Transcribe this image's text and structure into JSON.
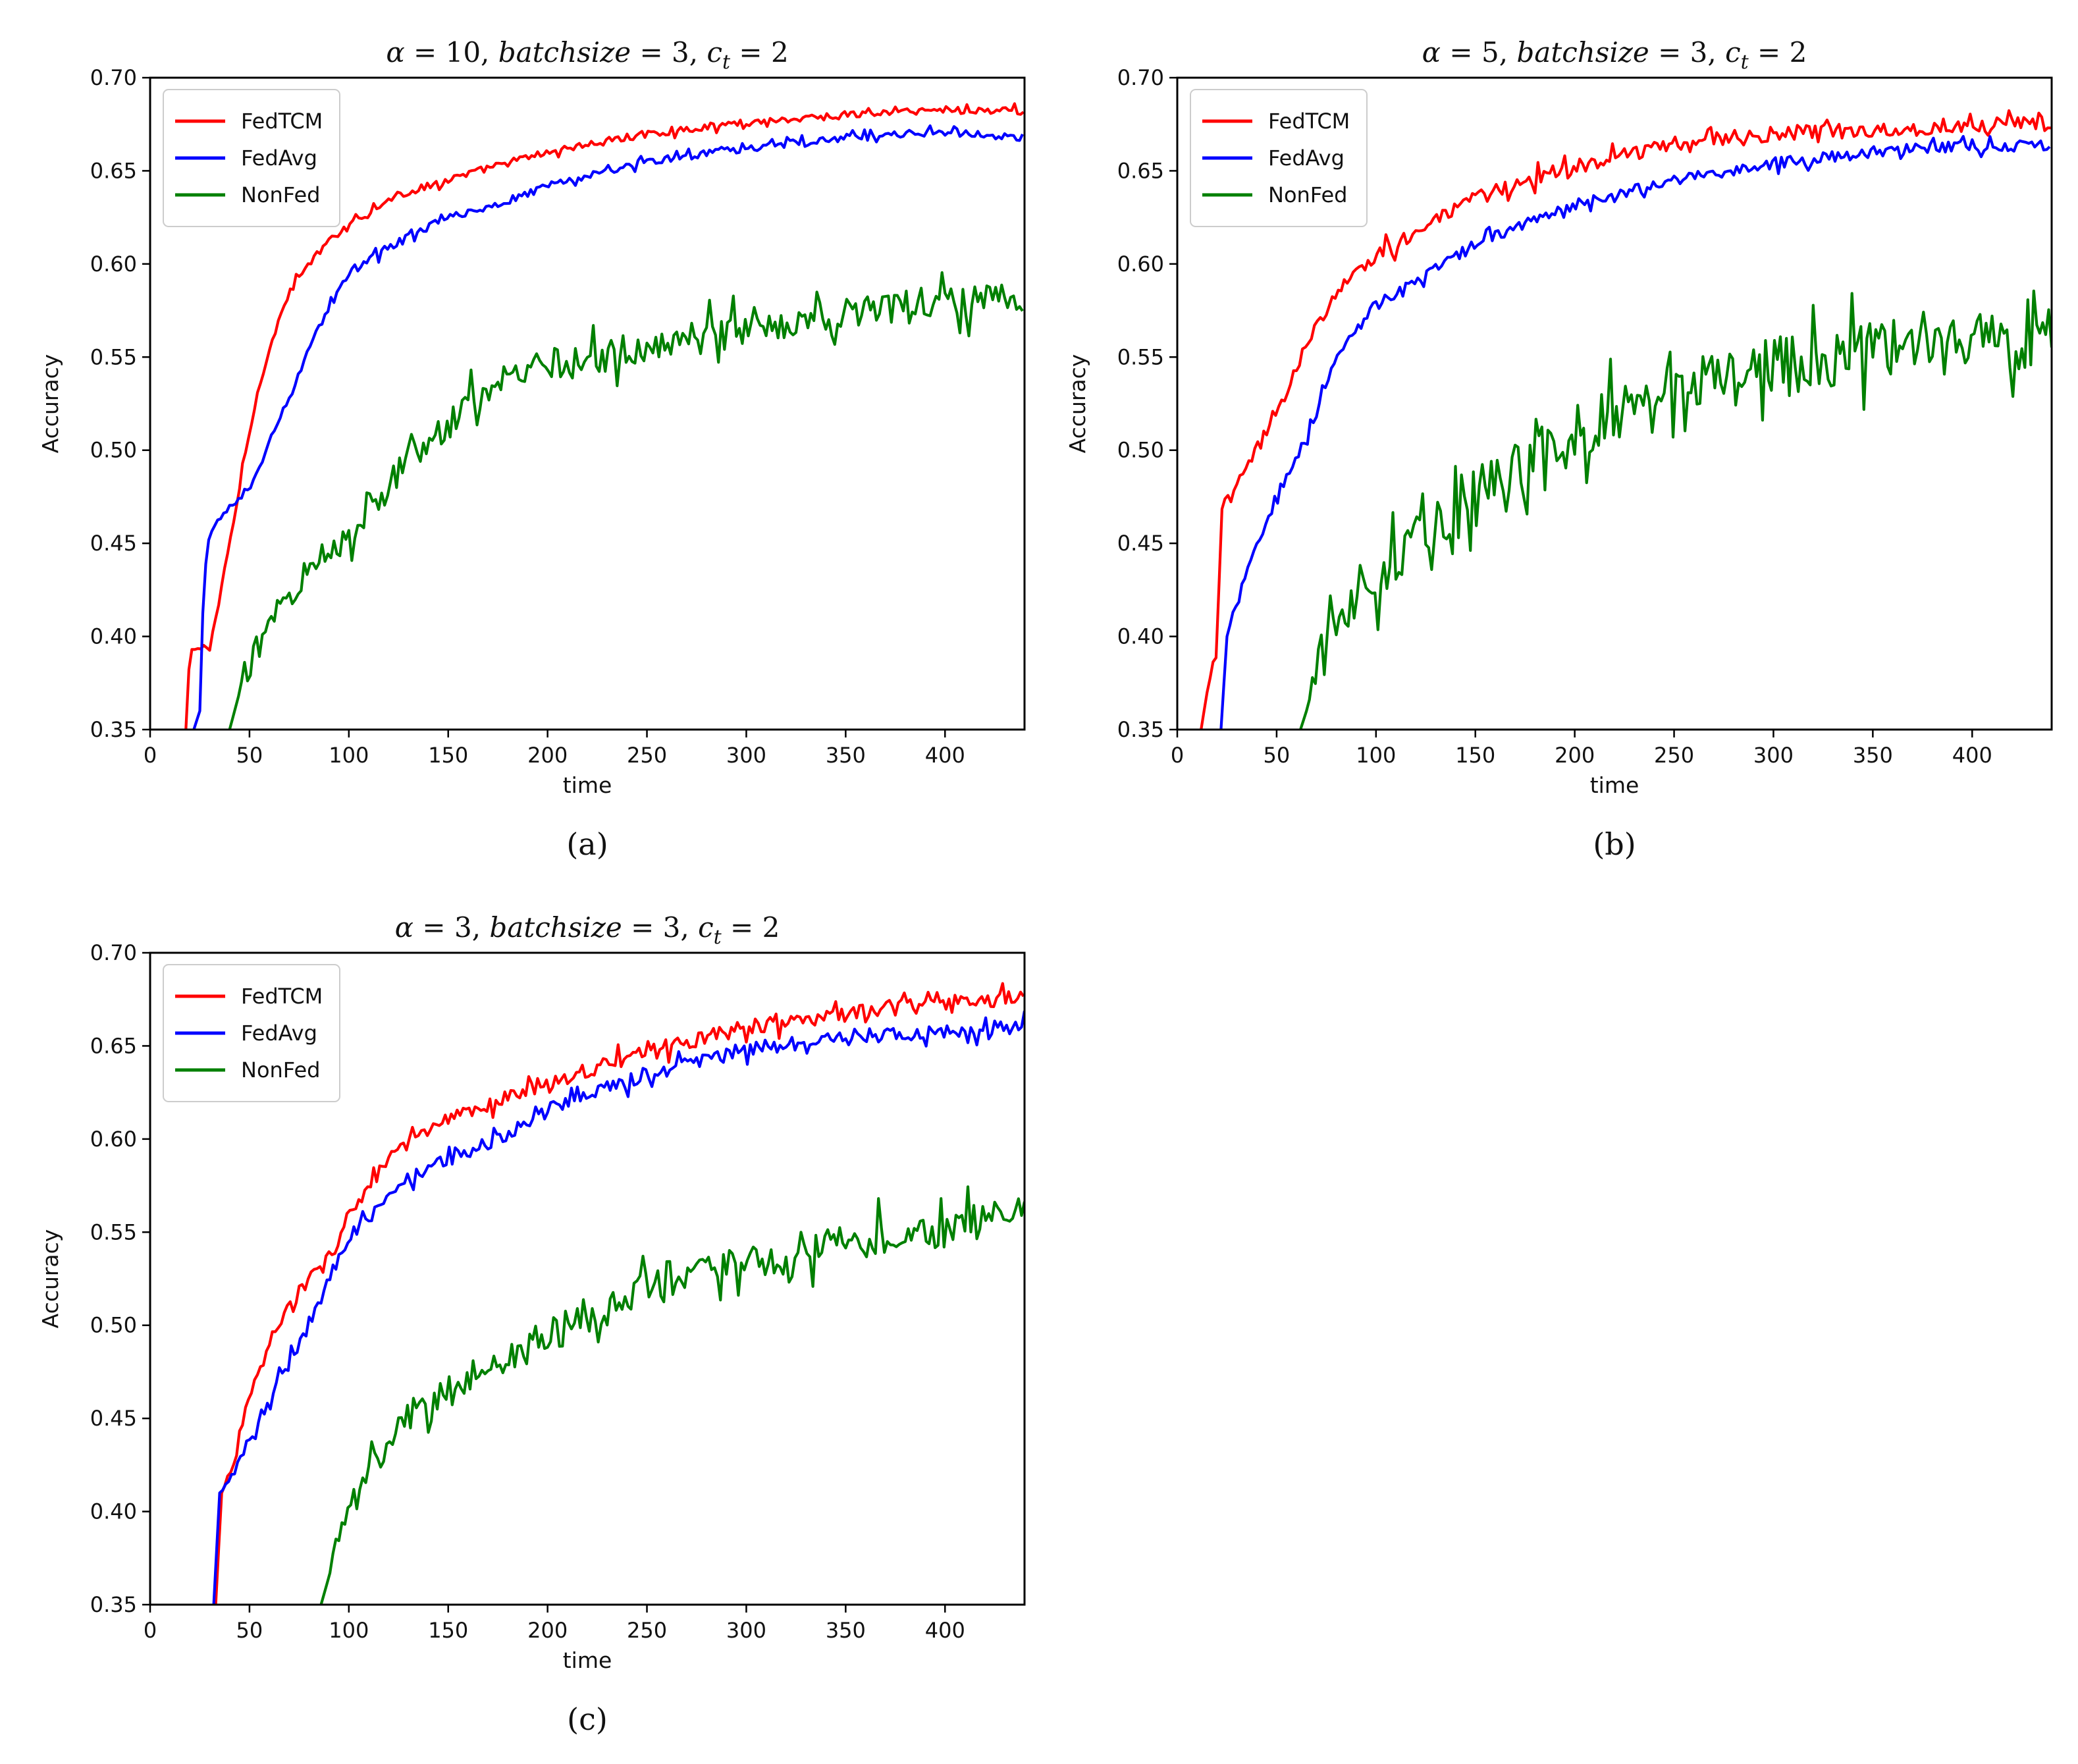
{
  "chart_data": [
    {
      "type": "line",
      "title": "α = 10, batchsize = 3, c_t = 2",
      "title_parts": {
        "alpha_value": "10",
        "batch_value": "3",
        "ct_value": "2"
      },
      "caption": "(a)",
      "xlabel": "time",
      "ylabel": "Accuracy",
      "xlim": [
        0,
        440
      ],
      "ylim": [
        0.35,
        0.7
      ],
      "xticks": [
        0,
        50,
        100,
        150,
        200,
        250,
        300,
        350,
        400
      ],
      "yticks": [
        "0.35",
        "0.40",
        "0.45",
        "0.50",
        "0.55",
        "0.60",
        "0.65",
        "0.70"
      ],
      "grid": false,
      "legend_position": "top-left",
      "series": [
        {
          "name": "FedTCM",
          "color": "#ff0000",
          "noise": 0.002,
          "x": [
            18,
            20,
            25,
            30,
            35,
            40,
            45,
            50,
            55,
            60,
            70,
            80,
            90,
            100,
            125,
            150,
            175,
            200,
            250,
            300,
            350,
            400,
            440
          ],
          "y": [
            0.35,
            0.393,
            0.393,
            0.395,
            0.42,
            0.45,
            0.48,
            0.51,
            0.535,
            0.555,
            0.585,
            0.6,
            0.612,
            0.622,
            0.637,
            0.645,
            0.653,
            0.66,
            0.67,
            0.676,
            0.68,
            0.683,
            0.682
          ]
        },
        {
          "name": "FedAvg",
          "color": "#0000ff",
          "noise": 0.002,
          "x": [
            22,
            25,
            27,
            30,
            35,
            40,
            45,
            50,
            55,
            60,
            70,
            80,
            90,
            100,
            125,
            150,
            175,
            200,
            250,
            300,
            350,
            400,
            440
          ],
          "y": [
            0.35,
            0.36,
            0.43,
            0.455,
            0.462,
            0.47,
            0.475,
            0.48,
            0.49,
            0.505,
            0.528,
            0.555,
            0.577,
            0.595,
            0.612,
            0.625,
            0.632,
            0.642,
            0.655,
            0.662,
            0.668,
            0.671,
            0.668
          ]
        },
        {
          "name": "NonFed",
          "color": "#008000",
          "noise": 0.009,
          "x": [
            40,
            45,
            50,
            60,
            70,
            80,
            90,
            100,
            125,
            150,
            175,
            200,
            250,
            300,
            350,
            400,
            440
          ],
          "y": [
            0.35,
            0.37,
            0.385,
            0.41,
            0.425,
            0.435,
            0.445,
            0.457,
            0.49,
            0.515,
            0.535,
            0.545,
            0.555,
            0.565,
            0.575,
            0.58,
            0.583
          ]
        }
      ]
    },
    {
      "type": "line",
      "title": "α = 5, batchsize = 3, c_t = 2",
      "title_parts": {
        "alpha_value": "5",
        "batch_value": "3",
        "ct_value": "2"
      },
      "caption": "(b)",
      "xlabel": "time",
      "ylabel": "Accuracy",
      "xlim": [
        0,
        440
      ],
      "ylim": [
        0.35,
        0.7
      ],
      "xticks": [
        0,
        50,
        100,
        150,
        200,
        250,
        300,
        350,
        400
      ],
      "yticks": [
        "0.35",
        "0.40",
        "0.45",
        "0.50",
        "0.55",
        "0.60",
        "0.65",
        "0.70"
      ],
      "grid": false,
      "legend_position": "top-left",
      "series": [
        {
          "name": "FedTCM",
          "color": "#ff0000",
          "noise": 0.004,
          "x": [
            12,
            15,
            18,
            20,
            22,
            25,
            30,
            40,
            50,
            60,
            70,
            80,
            90,
            100,
            125,
            150,
            175,
            200,
            250,
            300,
            350,
            400,
            440
          ],
          "y": [
            0.35,
            0.37,
            0.385,
            0.385,
            0.47,
            0.475,
            0.48,
            0.5,
            0.52,
            0.545,
            0.565,
            0.583,
            0.595,
            0.605,
            0.62,
            0.635,
            0.645,
            0.652,
            0.665,
            0.67,
            0.672,
            0.675,
            0.675
          ]
        },
        {
          "name": "FedAvg",
          "color": "#0000ff",
          "noise": 0.003,
          "x": [
            22,
            25,
            30,
            40,
            50,
            60,
            70,
            80,
            90,
            100,
            125,
            150,
            175,
            200,
            250,
            300,
            350,
            400,
            440
          ],
          "y": [
            0.35,
            0.4,
            0.42,
            0.45,
            0.475,
            0.495,
            0.52,
            0.548,
            0.565,
            0.578,
            0.595,
            0.61,
            0.622,
            0.632,
            0.645,
            0.654,
            0.66,
            0.664,
            0.663
          ]
        },
        {
          "name": "NonFed",
          "color": "#008000",
          "noise": 0.016,
          "x": [
            62,
            65,
            70,
            75,
            80,
            90,
            100,
            125,
            150,
            175,
            200,
            250,
            300,
            350,
            400,
            440
          ],
          "y": [
            0.35,
            0.36,
            0.38,
            0.395,
            0.41,
            0.425,
            0.435,
            0.46,
            0.475,
            0.49,
            0.51,
            0.53,
            0.545,
            0.553,
            0.558,
            0.56
          ]
        }
      ]
    },
    {
      "type": "line",
      "title": "α = 3, batchsize = 3, c_t = 2",
      "title_parts": {
        "alpha_value": "3",
        "batch_value": "3",
        "ct_value": "2"
      },
      "caption": "(c)",
      "xlabel": "time",
      "ylabel": "Accuracy",
      "xlim": [
        0,
        440
      ],
      "ylim": [
        0.35,
        0.7
      ],
      "xticks": [
        0,
        50,
        100,
        150,
        200,
        250,
        300,
        350,
        400
      ],
      "yticks": [
        "0.35",
        "0.40",
        "0.45",
        "0.50",
        "0.55",
        "0.60",
        "0.65",
        "0.70"
      ],
      "grid": false,
      "legend_position": "top-left",
      "series": [
        {
          "name": "FedTCM",
          "color": "#ff0000",
          "noise": 0.004,
          "x": [
            33,
            36,
            40,
            50,
            60,
            70,
            80,
            90,
            100,
            125,
            150,
            175,
            200,
            250,
            300,
            350,
            400,
            440
          ],
          "y": [
            0.35,
            0.41,
            0.42,
            0.46,
            0.49,
            0.51,
            0.525,
            0.535,
            0.56,
            0.595,
            0.61,
            0.62,
            0.63,
            0.647,
            0.66,
            0.667,
            0.673,
            0.676
          ]
        },
        {
          "name": "FedAvg",
          "color": "#0000ff",
          "noise": 0.004,
          "x": [
            32,
            35,
            40,
            50,
            60,
            70,
            80,
            90,
            100,
            125,
            150,
            175,
            200,
            250,
            300,
            350,
            400,
            440
          ],
          "y": [
            0.35,
            0.41,
            0.415,
            0.44,
            0.46,
            0.48,
            0.5,
            0.525,
            0.545,
            0.575,
            0.59,
            0.6,
            0.615,
            0.635,
            0.648,
            0.655,
            0.658,
            0.661
          ]
        },
        {
          "name": "NonFed",
          "color": "#008000",
          "noise": 0.01,
          "x": [
            86,
            90,
            95,
            100,
            110,
            125,
            150,
            175,
            200,
            250,
            300,
            350,
            400,
            440
          ],
          "y": [
            0.35,
            0.365,
            0.385,
            0.4,
            0.425,
            0.445,
            0.465,
            0.48,
            0.495,
            0.52,
            0.535,
            0.545,
            0.552,
            0.56
          ]
        }
      ]
    }
  ]
}
